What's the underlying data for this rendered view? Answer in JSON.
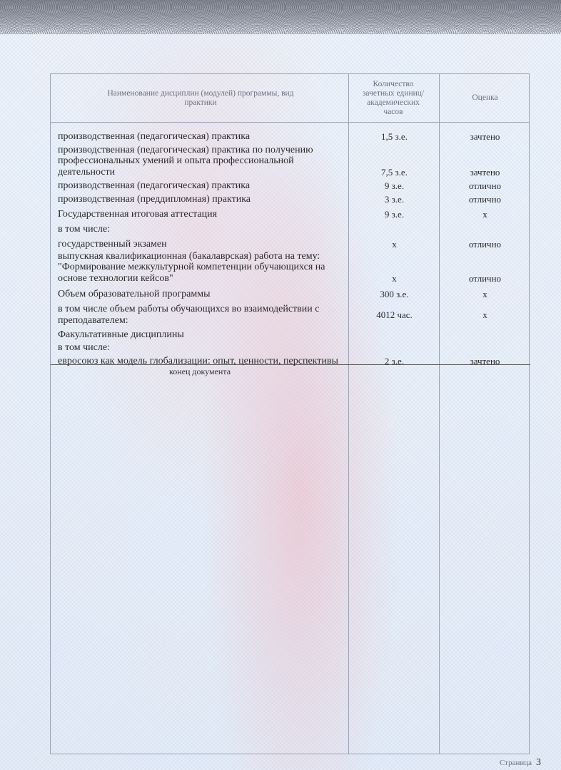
{
  "header": {
    "col1": "Наименование дисциплин (модулей) программы, вид практики",
    "col2": "Количество зачетных единиц/ академических часов",
    "col3": "Оценка"
  },
  "rows": [
    {
      "name": "производственная (педагогическая) практика",
      "amount": "1,5 з.е.",
      "grade": "зачтено"
    },
    {
      "name": "производственная (педагогическая) практика по получению профессиональных умений и опыта профессиональной деятельности",
      "amount": "7,5 з.е.",
      "grade": "зачтено"
    },
    {
      "name": "производственная (педагогическая) практика",
      "amount": "9 з.е.",
      "grade": "отлично"
    },
    {
      "name": "производственная (преддипломная) практика",
      "amount": "3 з.е.",
      "grade": "отлично"
    },
    {
      "name": "Государственная итоговая аттестация",
      "amount": "9 з.е.",
      "grade": "x"
    },
    {
      "name": "в том числе:",
      "amount": "",
      "grade": ""
    },
    {
      "name": "государственный экзамен",
      "amount": "x",
      "grade": "отлично"
    },
    {
      "name": "выпускная квалификационная (бакалаврская) работа на тему: \"Формирование межкультурной компетенции обучающихся на основе технологии кейсов\"",
      "amount": "x",
      "grade": "отлично"
    },
    {
      "name": "Объем образовательной программы",
      "amount": "300 з.е.",
      "grade": "x"
    },
    {
      "name": "в том числе объем работы обучающихся во взаимодействии с преподавателем:",
      "amount": "4012 час.",
      "grade": "x"
    },
    {
      "name": "Факультативные дисциплины",
      "amount": "",
      "grade": ""
    },
    {
      "name": "в том числе:",
      "amount": "",
      "grade": ""
    },
    {
      "name": "евросоюз как модель глобализации: опыт, ценности, перспективы",
      "amount": "2 з.е.",
      "grade": "зачтено"
    }
  ],
  "end_note": "конец документа",
  "footer": {
    "page_label": "Страница",
    "page_number": "3"
  }
}
